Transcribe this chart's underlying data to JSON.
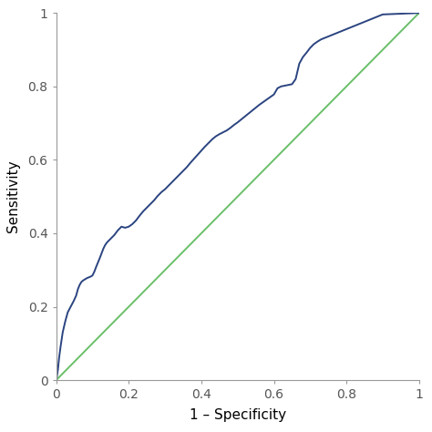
{
  "title": "",
  "xlabel": "1 – Specificity",
  "ylabel": "Sensitivity",
  "xlim": [
    0,
    1.0
  ],
  "ylim": [
    0,
    1.0
  ],
  "xticks": [
    0,
    0.2,
    0.4,
    0.6,
    0.8,
    1.0
  ],
  "yticks": [
    0,
    0.2,
    0.4,
    0.6,
    0.8,
    1.0
  ],
  "roc_color": "#2b4480",
  "diag_color": "#6abf69",
  "roc_linewidth": 1.4,
  "diag_linewidth": 1.4,
  "background_color": "#ffffff",
  "spine_color": "#999999",
  "tick_label_size": 10,
  "axis_label_size": 11,
  "roc_x": [
    0.0,
    0.002,
    0.005,
    0.008,
    0.012,
    0.018,
    0.025,
    0.032,
    0.04,
    0.048,
    0.055,
    0.06,
    0.065,
    0.07,
    0.075,
    0.08,
    0.085,
    0.09,
    0.095,
    0.1,
    0.105,
    0.11,
    0.115,
    0.12,
    0.125,
    0.13,
    0.135,
    0.14,
    0.145,
    0.15,
    0.155,
    0.16,
    0.17,
    0.18,
    0.19,
    0.2,
    0.21,
    0.22,
    0.23,
    0.24,
    0.25,
    0.26,
    0.27,
    0.28,
    0.29,
    0.3,
    0.31,
    0.32,
    0.33,
    0.34,
    0.35,
    0.36,
    0.37,
    0.38,
    0.39,
    0.4,
    0.41,
    0.42,
    0.43,
    0.44,
    0.45,
    0.46,
    0.47,
    0.48,
    0.49,
    0.5,
    0.51,
    0.52,
    0.53,
    0.54,
    0.55,
    0.56,
    0.57,
    0.58,
    0.59,
    0.6,
    0.61,
    0.62,
    0.63,
    0.64,
    0.65,
    0.66,
    0.67,
    0.68,
    0.69,
    0.7,
    0.71,
    0.72,
    0.73,
    0.74,
    0.75,
    0.76,
    0.77,
    0.78,
    0.79,
    0.8,
    0.81,
    0.82,
    0.83,
    0.84,
    0.85,
    0.86,
    0.87,
    0.88,
    0.89,
    0.9,
    1.0
  ],
  "roc_y": [
    0.0,
    0.01,
    0.03,
    0.06,
    0.09,
    0.13,
    0.16,
    0.185,
    0.2,
    0.215,
    0.23,
    0.248,
    0.26,
    0.268,
    0.272,
    0.275,
    0.278,
    0.28,
    0.282,
    0.285,
    0.295,
    0.308,
    0.32,
    0.332,
    0.345,
    0.358,
    0.368,
    0.375,
    0.38,
    0.385,
    0.39,
    0.395,
    0.408,
    0.418,
    0.415,
    0.418,
    0.425,
    0.435,
    0.448,
    0.46,
    0.47,
    0.48,
    0.49,
    0.502,
    0.512,
    0.52,
    0.53,
    0.54,
    0.55,
    0.56,
    0.57,
    0.58,
    0.592,
    0.603,
    0.614,
    0.625,
    0.636,
    0.646,
    0.656,
    0.664,
    0.67,
    0.675,
    0.68,
    0.687,
    0.695,
    0.702,
    0.71,
    0.718,
    0.726,
    0.734,
    0.742,
    0.75,
    0.757,
    0.764,
    0.771,
    0.778,
    0.795,
    0.8,
    0.802,
    0.804,
    0.806,
    0.82,
    0.862,
    0.88,
    0.892,
    0.905,
    0.915,
    0.922,
    0.928,
    0.932,
    0.936,
    0.94,
    0.944,
    0.948,
    0.952,
    0.956,
    0.96,
    0.964,
    0.968,
    0.972,
    0.976,
    0.98,
    0.984,
    0.988,
    0.992,
    0.996,
    1.0
  ]
}
